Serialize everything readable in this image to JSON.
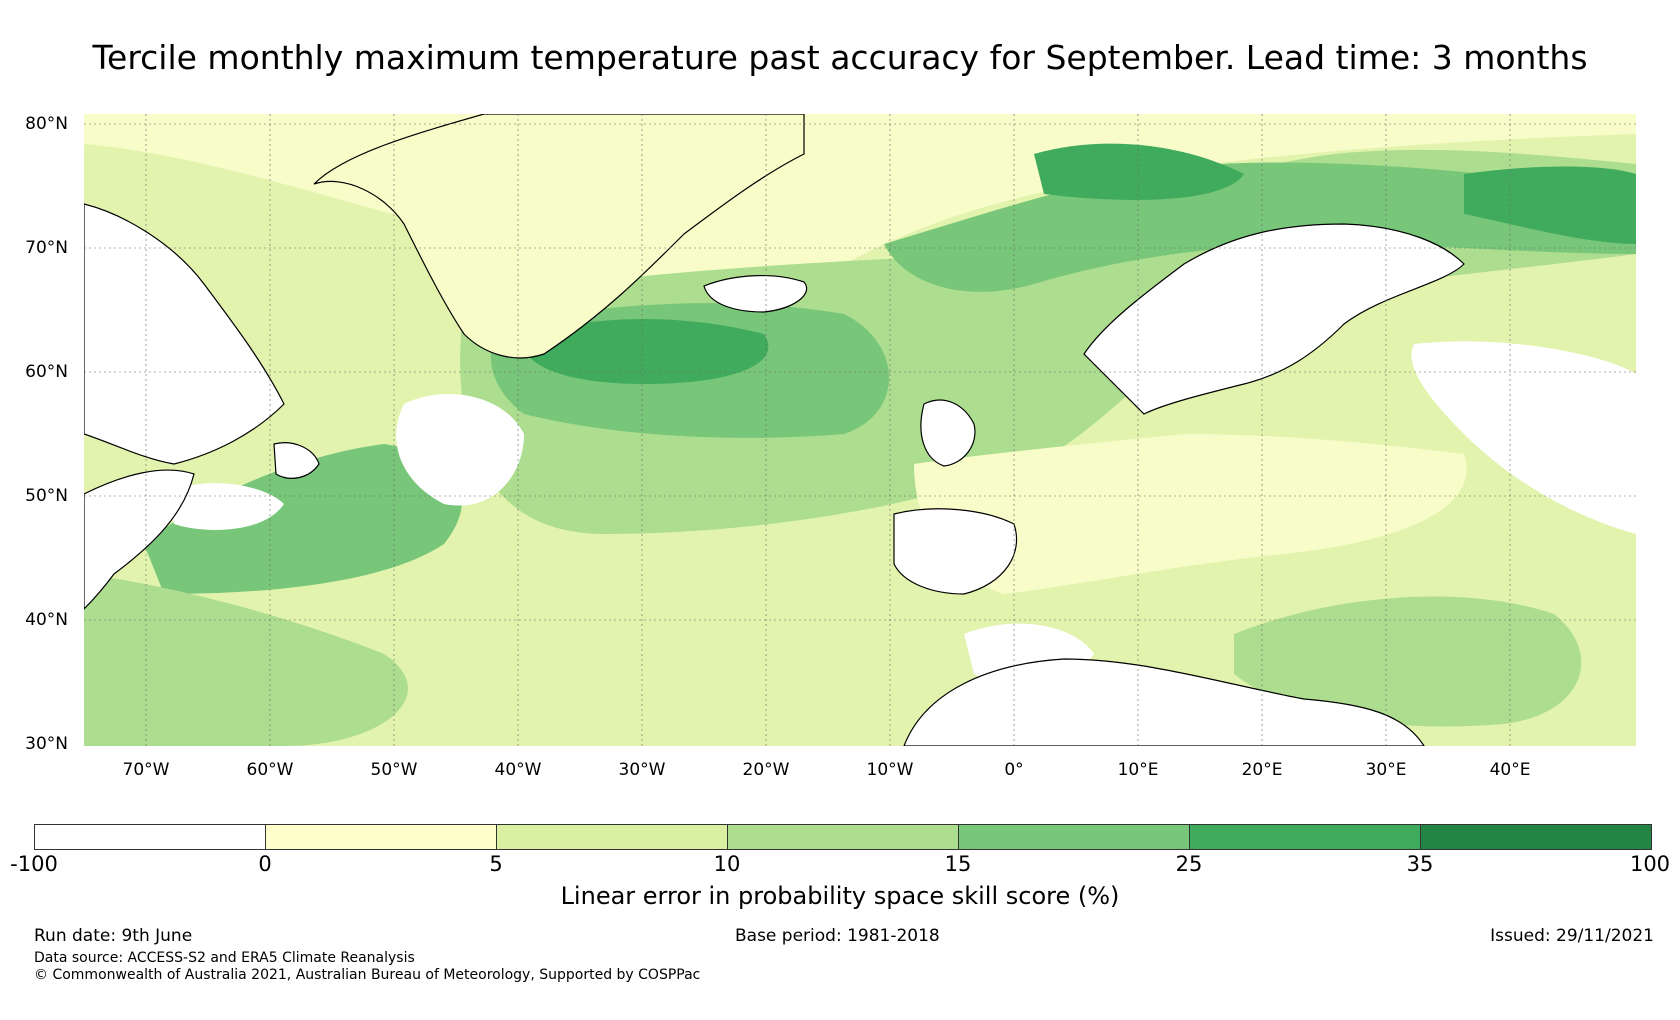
{
  "title": "Tercile monthly maximum temperature past accuracy for September. Lead time: 3 months",
  "map": {
    "lat_labels": [
      "80°N",
      "70°N",
      "60°N",
      "50°N",
      "40°N",
      "30°N"
    ],
    "lon_labels": [
      "70°W",
      "60°W",
      "50°W",
      "40°W",
      "30°W",
      "20°W",
      "10°W",
      "0°",
      "10°E",
      "20°E",
      "30°E",
      "40°E"
    ],
    "lat_values": [
      80,
      70,
      60,
      50,
      40,
      30
    ],
    "lon_values": [
      -70,
      -60,
      -50,
      -40,
      -30,
      -20,
      -10,
      0,
      10,
      20,
      30,
      40
    ],
    "lon_range": [
      -75,
      50
    ],
    "lat_range": [
      30,
      81
    ],
    "land_color": "#ffffff"
  },
  "colorbar": {
    "ticks": [
      "-100",
      "0",
      "5",
      "10",
      "15",
      "25",
      "35",
      "100"
    ],
    "colors": [
      "#ffffff",
      "#ffffcc",
      "#d9f0a3",
      "#addd8e",
      "#78c679",
      "#41ab5d",
      "#238443"
    ],
    "label": "Linear error in probability space skill score (%)"
  },
  "footer": {
    "run_date": "Run date: 9th June",
    "base_period": "Base period: 1981-2018",
    "issued": "Issued: 29/11/2021",
    "data_source": "Data source: ACCESS-S2 and ERA5 Climate Reanalysis",
    "copyright": "© Commonwealth of Australia 2021, Australian Bureau of Meteorology, Supported by COSPPac"
  }
}
